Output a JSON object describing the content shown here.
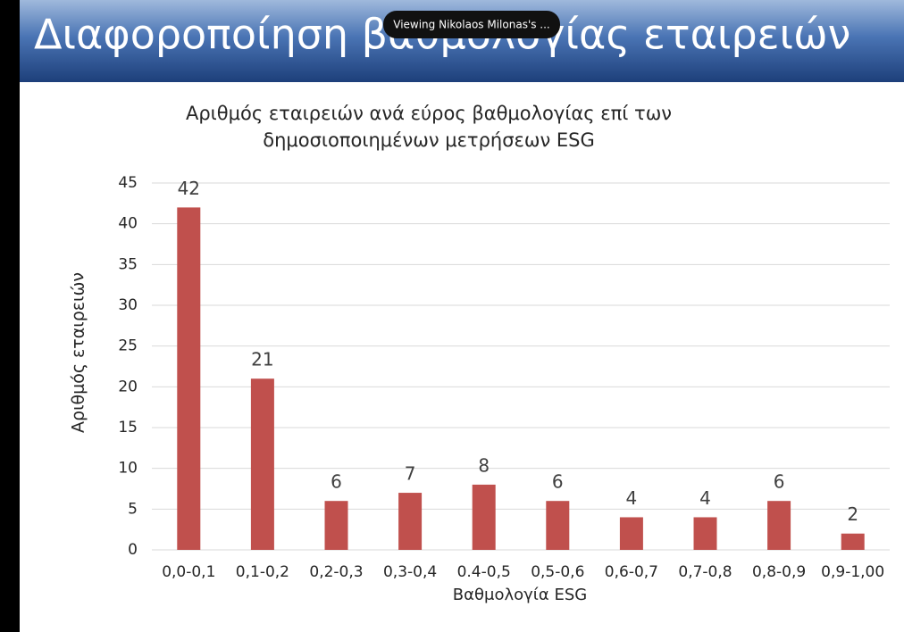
{
  "slide": {
    "title": "Διαφοροποίηση βαθμολογίας εταιρειών"
  },
  "overlay": {
    "text": "Viewing Nikolaos Milonas's ..."
  },
  "chart_data": {
    "type": "bar",
    "title": [
      "Αριθμός εταιρειών ανά εύρος βαθμολογίας επί των",
      "δημοσιοποιημένων μετρήσεων ESG"
    ],
    "x_label": "Βαθμολογία ESG",
    "y_label": "Αριθμός εταιρειών",
    "categories": [
      "0,0-0,1",
      "0,1-0,2",
      "0,2-0,3",
      "0,3-0,4",
      "0.4-0,5",
      "0,5-0,6",
      "0,6-0,7",
      "0,7-0,8",
      "0,8-0,9",
      "0,9-1,00"
    ],
    "values": [
      42,
      21,
      6,
      7,
      8,
      6,
      4,
      4,
      6,
      2
    ],
    "color": "#c0504d",
    "ylim": [
      0,
      45
    ],
    "yticks": [
      0,
      5,
      10,
      15,
      20,
      25,
      30,
      35,
      40,
      45
    ],
    "grid": true
  }
}
